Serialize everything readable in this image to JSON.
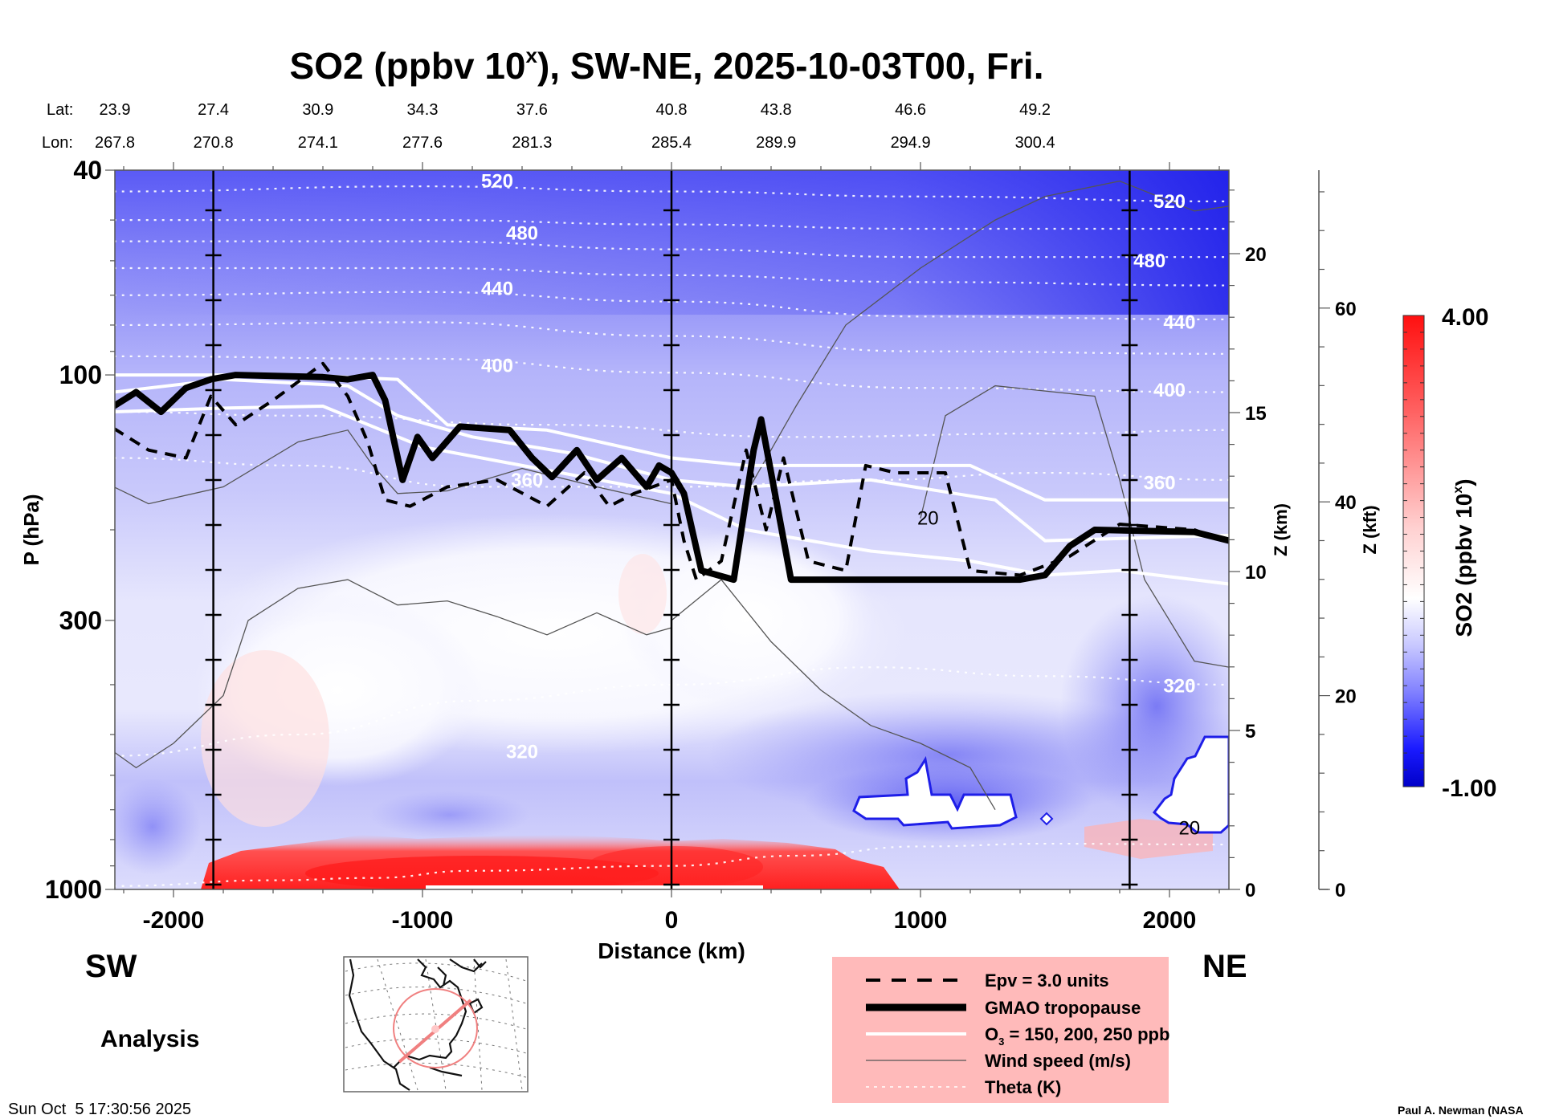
{
  "chart_data": {
    "type": "heatmap",
    "title": "SO2 (ppbv 10",
    "title_sup": "x",
    "title_suffix": "), SW-NE, 2025-10-03T00, Fri.",
    "xlabel": "Distance (km)",
    "ylabel": "P (hPa)",
    "y2label": "Z (km)",
    "y3label": "Z (kft)",
    "colorbar_label": "SO2 (ppbv 10",
    "colorbar_label_sup": "x",
    "colorbar_label_suffix": ")",
    "colorbar_min_label": "-1.00",
    "colorbar_max_label": "4.00",
    "colorbar_range": [
      -1.0,
      4.0
    ],
    "colorbar_colors": [
      "#0000c8",
      "#ffffff",
      "#ff0000"
    ],
    "xlim": [
      -2240,
      2240
    ],
    "ylim_hpa": [
      1000,
      40
    ],
    "x_ticks": [
      -2000,
      -1000,
      0,
      1000,
      2000
    ],
    "x_tick_labels": [
      "-2000",
      "-1000",
      "0",
      "1000",
      "2000"
    ],
    "y_ticks_hpa": [
      40,
      100,
      300,
      1000
    ],
    "y_tick_labels": [
      "40",
      "100",
      "300",
      "1000"
    ],
    "z_km_ticks": [
      0,
      5,
      10,
      15,
      20
    ],
    "z_km_labels": [
      "0",
      "5",
      "10",
      "15",
      "20"
    ],
    "z_kft_ticks": [
      0,
      20,
      40,
      60
    ],
    "z_kft_labels": [
      "0",
      "20",
      "40",
      "60"
    ],
    "lat_label": "Lat:",
    "lon_label": "Lon:",
    "lat_values": [
      "23.9",
      "27.4",
      "30.9",
      "34.3",
      "37.6",
      "40.8",
      "43.8",
      "46.6",
      "49.2"
    ],
    "lon_values": [
      "267.8",
      "270.8",
      "274.1",
      "277.6",
      "281.3",
      "285.4",
      "289.9",
      "294.9",
      "300.4"
    ],
    "latlon_distances_km": [
      -2240,
      -1840,
      -1420,
      -1000,
      -560,
      0,
      420,
      960,
      1460
    ],
    "vertical_marker_lines_km": [
      -1840,
      0,
      1840
    ],
    "theta_labels": [
      {
        "text": "520",
        "x_km": -700,
        "p": 42
      },
      {
        "text": "480",
        "x_km": -600,
        "p": 53
      },
      {
        "text": "440",
        "x_km": -700,
        "p": 68
      },
      {
        "text": "400",
        "x_km": -700,
        "p": 96
      },
      {
        "text": "360",
        "x_km": -580,
        "p": 160
      },
      {
        "text": "320",
        "x_km": -600,
        "p": 540
      },
      {
        "text": "520",
        "x_km": 2000,
        "p": 46
      },
      {
        "text": "480",
        "x_km": 1920,
        "p": 60
      },
      {
        "text": "440",
        "x_km": 2040,
        "p": 79
      },
      {
        "text": "400",
        "x_km": 2000,
        "p": 107
      },
      {
        "text": "360",
        "x_km": 1960,
        "p": 162
      },
      {
        "text": "320",
        "x_km": 2040,
        "p": 402
      }
    ],
    "wind_labels": [
      {
        "text": "20",
        "x_km": 1030,
        "p": 190
      },
      {
        "text": "20",
        "x_km": 2080,
        "p": 760
      }
    ],
    "theta_levels": [
      {
        "value": 520,
        "points": [
          [
            -2240,
            44
          ],
          [
            -1000,
            43
          ],
          [
            0,
            44
          ],
          [
            1000,
            45
          ],
          [
            2240,
            46
          ]
        ]
      },
      {
        "value": 500,
        "points": [
          [
            -2240,
            50
          ],
          [
            -1000,
            50
          ],
          [
            0,
            51
          ],
          [
            1000,
            52
          ],
          [
            2240,
            52
          ]
        ]
      },
      {
        "value": 480,
        "points": [
          [
            -2240,
            55
          ],
          [
            -1000,
            55
          ],
          [
            0,
            57
          ],
          [
            1000,
            59
          ],
          [
            2240,
            59
          ]
        ]
      },
      {
        "value": 460,
        "points": [
          [
            -2240,
            62
          ],
          [
            -1000,
            62
          ],
          [
            0,
            64
          ],
          [
            1000,
            66
          ],
          [
            2240,
            67
          ]
        ]
      },
      {
        "value": 440,
        "points": [
          [
            -2240,
            70
          ],
          [
            -1000,
            69
          ],
          [
            0,
            72
          ],
          [
            1000,
            77
          ],
          [
            2240,
            78
          ]
        ]
      },
      {
        "value": 420,
        "points": [
          [
            -2240,
            80
          ],
          [
            -1000,
            79
          ],
          [
            0,
            84
          ],
          [
            1000,
            90
          ],
          [
            2240,
            91
          ]
        ]
      },
      {
        "value": 400,
        "points": [
          [
            -2240,
            92
          ],
          [
            -1000,
            93
          ],
          [
            0,
            99
          ],
          [
            1000,
            106
          ],
          [
            2240,
            108
          ]
        ]
      },
      {
        "value": 380,
        "points": [
          [
            -2240,
            118
          ],
          [
            -1500,
            120
          ],
          [
            -500,
            125
          ],
          [
            500,
            132
          ],
          [
            1500,
            130
          ],
          [
            2240,
            128
          ]
        ]
      },
      {
        "value": 360,
        "points": [
          [
            -2240,
            145
          ],
          [
            -1500,
            150
          ],
          [
            -800,
            165
          ],
          [
            0,
            165
          ],
          [
            800,
            160
          ],
          [
            1500,
            155
          ],
          [
            2240,
            160
          ]
        ]
      },
      {
        "value": 320,
        "points": [
          [
            -2240,
            550
          ],
          [
            -1500,
            500
          ],
          [
            -800,
            430
          ],
          [
            0,
            400
          ],
          [
            800,
            370
          ],
          [
            1500,
            385
          ],
          [
            2240,
            400
          ]
        ]
      },
      {
        "value": 300,
        "points": [
          [
            -2240,
            985
          ],
          [
            -1600,
            960
          ],
          [
            -1200,
            950
          ],
          [
            -800,
            920
          ],
          [
            0,
            900
          ],
          [
            500,
            860
          ],
          [
            1000,
            825
          ],
          [
            1500,
            815
          ],
          [
            2240,
            818
          ]
        ]
      }
    ],
    "tropopause_hpa": [
      [
        -2240,
        115
      ],
      [
        -2150,
        108
      ],
      [
        -2050,
        118
      ],
      [
        -1950,
        106
      ],
      [
        -1850,
        102
      ],
      [
        -1750,
        100
      ],
      [
        -1400,
        101
      ],
      [
        -1300,
        102
      ],
      [
        -1200,
        100
      ],
      [
        -1150,
        112
      ],
      [
        -1080,
        160
      ],
      [
        -1020,
        132
      ],
      [
        -960,
        145
      ],
      [
        -850,
        126
      ],
      [
        -650,
        128
      ],
      [
        -560,
        145
      ],
      [
        -480,
        158
      ],
      [
        -380,
        140
      ],
      [
        -300,
        160
      ],
      [
        -200,
        145
      ],
      [
        -100,
        165
      ],
      [
        -50,
        150
      ],
      [
        0,
        155
      ],
      [
        50,
        170
      ],
      [
        120,
        240
      ],
      [
        250,
        250
      ],
      [
        330,
        140
      ],
      [
        360,
        122
      ],
      [
        480,
        250
      ],
      [
        900,
        250
      ],
      [
        1400,
        250
      ],
      [
        1500,
        245
      ],
      [
        1600,
        215
      ],
      [
        1700,
        200
      ],
      [
        2100,
        202
      ],
      [
        2240,
        210
      ]
    ],
    "epv_hpa": [
      [
        -2240,
        127
      ],
      [
        -2100,
        140
      ],
      [
        -1950,
        145
      ],
      [
        -1850,
        110
      ],
      [
        -1750,
        125
      ],
      [
        -1600,
        112
      ],
      [
        -1400,
        95
      ],
      [
        -1300,
        110
      ],
      [
        -1220,
        135
      ],
      [
        -1150,
        175
      ],
      [
        -1050,
        180
      ],
      [
        -900,
        165
      ],
      [
        -700,
        160
      ],
      [
        -500,
        180
      ],
      [
        -350,
        155
      ],
      [
        -250,
        180
      ],
      [
        -150,
        170
      ],
      [
        0,
        160
      ],
      [
        50,
        210
      ],
      [
        100,
        250
      ],
      [
        200,
        230
      ],
      [
        300,
        140
      ],
      [
        380,
        200
      ],
      [
        450,
        145
      ],
      [
        550,
        230
      ],
      [
        700,
        240
      ],
      [
        780,
        150
      ],
      [
        900,
        155
      ],
      [
        1100,
        155
      ],
      [
        1200,
        240
      ],
      [
        1400,
        245
      ],
      [
        1600,
        225
      ],
      [
        1800,
        195
      ],
      [
        2100,
        200
      ],
      [
        2240,
        212
      ]
    ],
    "o3_150_hpa": [
      [
        -2240,
        100
      ],
      [
        -1500,
        100
      ],
      [
        -1100,
        102
      ],
      [
        -900,
        125
      ],
      [
        -500,
        128
      ],
      [
        0,
        145
      ],
      [
        300,
        150
      ],
      [
        800,
        150
      ],
      [
        1200,
        150
      ],
      [
        1500,
        175
      ],
      [
        2240,
        175
      ]
    ],
    "o3_200_hpa": [
      [
        -2240,
        108
      ],
      [
        -1800,
        102
      ],
      [
        -1300,
        105
      ],
      [
        -1100,
        120
      ],
      [
        -800,
        132
      ],
      [
        -400,
        142
      ],
      [
        0,
        160
      ],
      [
        300,
        165
      ],
      [
        800,
        160
      ],
      [
        1300,
        175
      ],
      [
        1500,
        210
      ],
      [
        2240,
        205
      ]
    ],
    "o3_250_hpa": [
      [
        -2240,
        118
      ],
      [
        -1800,
        116
      ],
      [
        -1400,
        115
      ],
      [
        -1000,
        138
      ],
      [
        -600,
        150
      ],
      [
        0,
        170
      ],
      [
        300,
        200
      ],
      [
        800,
        220
      ],
      [
        1200,
        230
      ],
      [
        1500,
        245
      ],
      [
        1800,
        240
      ],
      [
        2240,
        255
      ]
    ],
    "wind_speed_contours_hpa": [
      [
        [
          -2240,
          165
        ],
        [
          -2100,
          178
        ],
        [
          -1800,
          165
        ],
        [
          -1500,
          135
        ],
        [
          -1300,
          128
        ],
        [
          -1200,
          150
        ],
        [
          -1100,
          170
        ],
        [
          -900,
          168
        ],
        [
          -600,
          152
        ],
        [
          -300,
          165
        ],
        [
          0,
          178
        ]
      ],
      [
        [
          -2240,
          540
        ],
        [
          -2150,
          580
        ],
        [
          -2000,
          520
        ],
        [
          -1800,
          420
        ],
        [
          -1700,
          300
        ],
        [
          -1500,
          260
        ],
        [
          -1300,
          250
        ],
        [
          -1100,
          280
        ],
        [
          -900,
          275
        ],
        [
          -700,
          295
        ],
        [
          -500,
          320
        ],
        [
          -300,
          290
        ],
        [
          -100,
          320
        ],
        [
          0,
          310
        ]
      ],
      [
        [
          300,
          170
        ],
        [
          500,
          115
        ],
        [
          700,
          80
        ],
        [
          1000,
          62
        ],
        [
          1300,
          50
        ],
        [
          1500,
          45
        ],
        [
          1800,
          42
        ],
        [
          2100,
          48
        ],
        [
          2240,
          47
        ]
      ],
      [
        [
          1000,
          190
        ],
        [
          1100,
          120
        ],
        [
          1300,
          105
        ],
        [
          1700,
          110
        ],
        [
          1800,
          160
        ],
        [
          1900,
          250
        ],
        [
          2100,
          360
        ],
        [
          2240,
          370
        ]
      ],
      [
        [
          0,
          300
        ],
        [
          200,
          250
        ],
        [
          400,
          330
        ],
        [
          600,
          410
        ],
        [
          800,
          480
        ],
        [
          1000,
          520
        ],
        [
          1200,
          580
        ],
        [
          1300,
          700
        ]
      ]
    ],
    "legend": [
      {
        "label": "Epv = 3.0 units",
        "style": "dashed-thick"
      },
      {
        "label": "GMAO tropopause",
        "style": "solid-black-thick"
      },
      {
        "label_pre": "O",
        "label_sub": "3",
        "label_post": " = 150, 200, 250 ppb",
        "style": "solid-white"
      },
      {
        "label": "Wind speed (m/s)",
        "style": "thin-gray"
      },
      {
        "label": "Theta (K)",
        "style": "dotted-white"
      }
    ],
    "legend_bg": "#ffbaba"
  },
  "labels": {
    "sw": "SW",
    "ne": "NE",
    "analysis": "Analysis",
    "timestamp": "Sun Oct  5 17:30:56 2025",
    "credit": "Paul A. Newman (NASA"
  },
  "inset_map": {
    "description": "North America map with cross-section path (SW to NE) and range circle",
    "path_color": "#f08080"
  }
}
